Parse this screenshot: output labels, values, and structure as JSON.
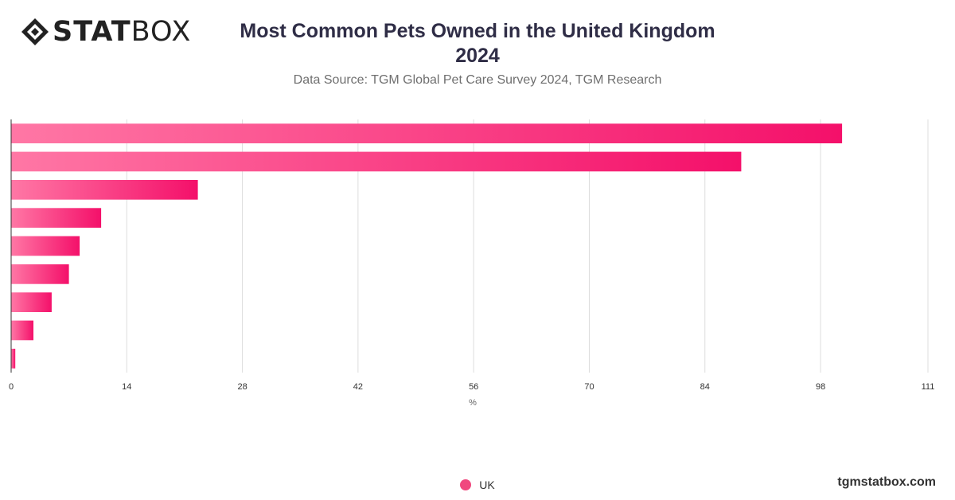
{
  "brand": {
    "logo_bold": "STAT",
    "logo_light": "BOX"
  },
  "header": {
    "title_line1": "Most Common Pets Owned in the United Kingdom",
    "title_line2": "2024",
    "subtitle": "Data Source: TGM Global Pet Care Survey 2024, TGM Research"
  },
  "colors": {
    "bar_start": "#ff77a5",
    "bar_end": "#f4106a",
    "grid": "#dddddd",
    "axis": "#333333"
  },
  "chart_data": {
    "type": "bar",
    "orientation": "horizontal",
    "categories": [
      "",
      "",
      "",
      "",
      "",
      "",
      "",
      "",
      ""
    ],
    "series": [
      {
        "name": "UK",
        "values": [
          100.6,
          88.4,
          22.6,
          10.9,
          8.3,
          7.0,
          4.9,
          2.7,
          0.5
        ]
      }
    ],
    "xlabel": "%",
    "xlim": [
      0,
      111
    ],
    "xticks": [
      0,
      14,
      28,
      42,
      56,
      70,
      84,
      98,
      111
    ],
    "grid": true,
    "legend_position": "bottom-center"
  },
  "legend": {
    "label": "UK"
  },
  "footer": {
    "watermark": "tgmstatbox.com"
  }
}
